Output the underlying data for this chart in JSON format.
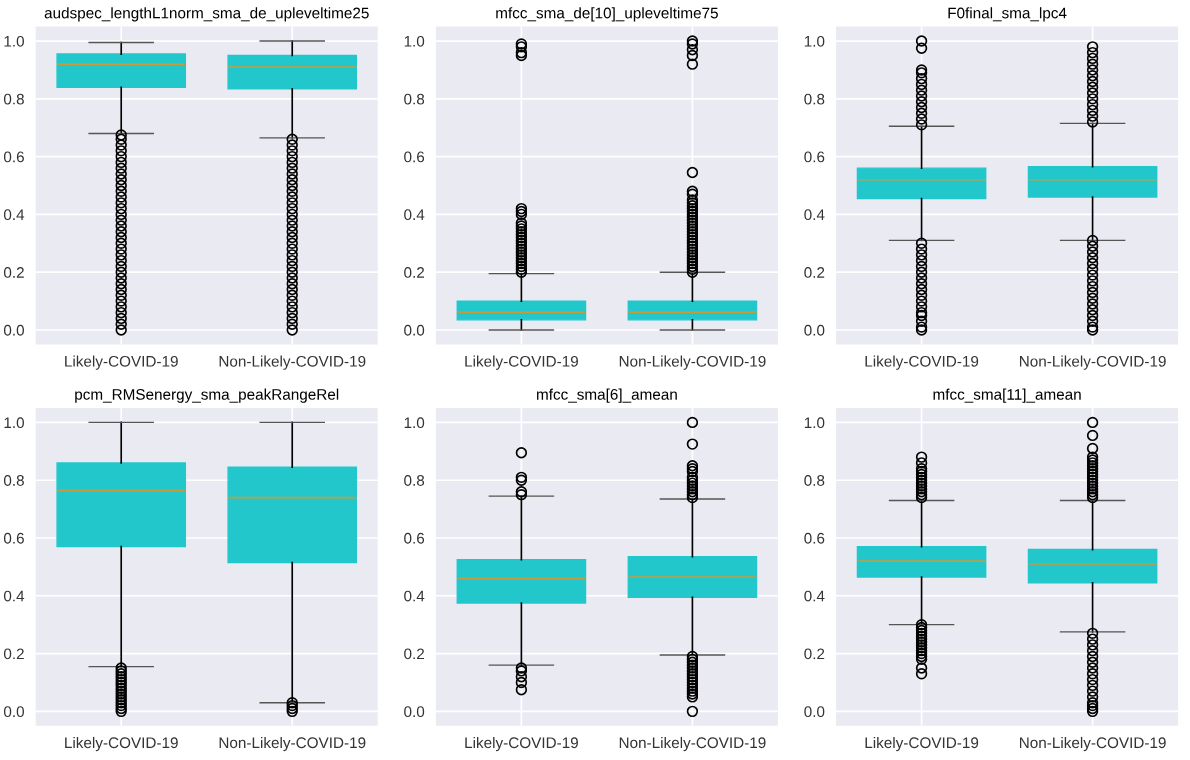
{
  "chart_data": [
    {
      "type": "box",
      "title": "audspec_lengthL1norm_sma_de_upleveltime25",
      "categories": [
        "Likely-COVID-19",
        "Non-Likely-COVID-19"
      ],
      "ylim": [
        -0.05,
        1.05
      ],
      "yticks": [
        {
          "value": 0,
          "label": "0.0"
        },
        {
          "value": 0.2,
          "label": "0.2"
        },
        {
          "value": 0.4,
          "label": "0.4"
        },
        {
          "value": 0.6,
          "label": "0.6"
        },
        {
          "value": 0.8,
          "label": "0.8"
        },
        {
          "value": 1,
          "label": "1.0"
        }
      ],
      "grid": true,
      "series": [
        {
          "color": "#22c7cc",
          "boxes": [
            {
              "low": 0.68,
              "q1": 0.84,
              "median": 0.92,
              "q3": 0.955,
              "high": 0.995,
              "outliers": [
                0.0,
                0.02,
                0.04,
                0.06,
                0.08,
                0.1,
                0.12,
                0.14,
                0.16,
                0.18,
                0.2,
                0.22,
                0.24,
                0.26,
                0.28,
                0.3,
                0.32,
                0.34,
                0.36,
                0.38,
                0.4,
                0.42,
                0.44,
                0.46,
                0.48,
                0.5,
                0.52,
                0.54,
                0.56,
                0.58,
                0.6,
                0.62,
                0.64,
                0.66,
                0.675
              ]
            },
            {
              "low": 0.665,
              "q1": 0.835,
              "median": 0.91,
              "q3": 0.95,
              "high": 1.0,
              "outliers": [
                0.0,
                0.02,
                0.04,
                0.06,
                0.08,
                0.1,
                0.12,
                0.14,
                0.16,
                0.18,
                0.2,
                0.22,
                0.24,
                0.26,
                0.28,
                0.3,
                0.32,
                0.34,
                0.36,
                0.38,
                0.4,
                0.42,
                0.44,
                0.46,
                0.48,
                0.5,
                0.52,
                0.54,
                0.56,
                0.58,
                0.6,
                0.62,
                0.64,
                0.66
              ]
            }
          ]
        }
      ]
    },
    {
      "type": "box",
      "title": "mfcc_sma_de[10]_upleveltime75",
      "categories": [
        "Likely-COVID-19",
        "Non-Likely-COVID-19"
      ],
      "ylim": [
        -0.05,
        1.05
      ],
      "yticks": [
        {
          "value": 0,
          "label": "0.0"
        },
        {
          "value": 0.2,
          "label": "0.2"
        },
        {
          "value": 0.4,
          "label": "0.4"
        },
        {
          "value": 0.6,
          "label": "0.6"
        },
        {
          "value": 0.8,
          "label": "0.8"
        },
        {
          "value": 1,
          "label": "1.0"
        }
      ],
      "grid": true,
      "series": [
        {
          "color": "#22c7cc",
          "boxes": [
            {
              "low": 0.0,
              "q1": 0.035,
              "median": 0.062,
              "q3": 0.1,
              "high": 0.195,
              "outliers": [
                0.2,
                0.21,
                0.22,
                0.23,
                0.24,
                0.25,
                0.26,
                0.27,
                0.28,
                0.29,
                0.3,
                0.31,
                0.32,
                0.33,
                0.34,
                0.35,
                0.36,
                0.37,
                0.4,
                0.41,
                0.42,
                0.95,
                0.96,
                0.98,
                0.99
              ]
            },
            {
              "low": 0.0,
              "q1": 0.035,
              "median": 0.062,
              "q3": 0.1,
              "high": 0.2,
              "outliers": [
                0.2,
                0.21,
                0.22,
                0.23,
                0.24,
                0.25,
                0.26,
                0.27,
                0.28,
                0.29,
                0.3,
                0.31,
                0.32,
                0.33,
                0.34,
                0.35,
                0.36,
                0.37,
                0.38,
                0.39,
                0.4,
                0.41,
                0.42,
                0.43,
                0.44,
                0.45,
                0.47,
                0.48,
                0.545,
                0.92,
                0.95,
                0.97,
                0.99,
                1.0
              ]
            }
          ]
        }
      ]
    },
    {
      "type": "box",
      "title": "F0final_sma_lpc4",
      "categories": [
        "Likely-COVID-19",
        "Non-Likely-COVID-19"
      ],
      "ylim": [
        -0.05,
        1.05
      ],
      "yticks": [
        {
          "value": 0,
          "label": "0.0"
        },
        {
          "value": 0.2,
          "label": "0.2"
        },
        {
          "value": 0.4,
          "label": "0.4"
        },
        {
          "value": 0.6,
          "label": "0.6"
        },
        {
          "value": 0.8,
          "label": "0.8"
        },
        {
          "value": 1,
          "label": "1.0"
        }
      ],
      "grid": true,
      "series": [
        {
          "color": "#22c7cc",
          "boxes": [
            {
              "low": 0.31,
              "q1": 0.455,
              "median": 0.52,
              "q3": 0.56,
              "high": 0.705,
              "outliers": [
                0.0,
                0.01,
                0.03,
                0.05,
                0.06,
                0.08,
                0.1,
                0.12,
                0.14,
                0.16,
                0.18,
                0.2,
                0.22,
                0.24,
                0.26,
                0.28,
                0.3,
                0.71,
                0.73,
                0.75,
                0.77,
                0.79,
                0.81,
                0.83,
                0.85,
                0.87,
                0.89,
                0.9,
                0.975,
                1.0
              ]
            },
            {
              "low": 0.31,
              "q1": 0.46,
              "median": 0.52,
              "q3": 0.565,
              "high": 0.715,
              "outliers": [
                0.0,
                0.01,
                0.03,
                0.05,
                0.07,
                0.09,
                0.11,
                0.13,
                0.15,
                0.17,
                0.19,
                0.21,
                0.23,
                0.25,
                0.27,
                0.29,
                0.31,
                0.72,
                0.74,
                0.76,
                0.78,
                0.8,
                0.82,
                0.84,
                0.86,
                0.88,
                0.9,
                0.92,
                0.94,
                0.96,
                0.98
              ]
            }
          ]
        }
      ]
    },
    {
      "type": "box",
      "title": "pcm_RMSenergy_sma_peakRangeRel",
      "categories": [
        "Likely-COVID-19",
        "Non-Likely-COVID-19"
      ],
      "ylim": [
        -0.05,
        1.05
      ],
      "yticks": [
        {
          "value": 0,
          "label": "0.0"
        },
        {
          "value": 0.2,
          "label": "0.2"
        },
        {
          "value": 0.4,
          "label": "0.4"
        },
        {
          "value": 0.6,
          "label": "0.6"
        },
        {
          "value": 0.8,
          "label": "0.8"
        },
        {
          "value": 1,
          "label": "1.0"
        }
      ],
      "grid": true,
      "series": [
        {
          "color": "#22c7cc",
          "boxes": [
            {
              "low": 0.155,
              "q1": 0.57,
              "median": 0.765,
              "q3": 0.86,
              "high": 1.0,
              "outliers": [
                0.0,
                0.01,
                0.02,
                0.03,
                0.04,
                0.05,
                0.06,
                0.07,
                0.08,
                0.09,
                0.1,
                0.11,
                0.12,
                0.13,
                0.14,
                0.15
              ]
            },
            {
              "low": 0.03,
              "q1": 0.515,
              "median": 0.74,
              "q3": 0.845,
              "high": 1.0,
              "outliers": [
                0.0,
                0.01,
                0.02,
                0.03
              ]
            }
          ]
        }
      ]
    },
    {
      "type": "box",
      "title": "mfcc_sma[6]_amean",
      "categories": [
        "Likely-COVID-19",
        "Non-Likely-COVID-19"
      ],
      "ylim": [
        -0.05,
        1.05
      ],
      "yticks": [
        {
          "value": 0,
          "label": "0.0"
        },
        {
          "value": 0.2,
          "label": "0.2"
        },
        {
          "value": 0.4,
          "label": "0.4"
        },
        {
          "value": 0.6,
          "label": "0.6"
        },
        {
          "value": 0.8,
          "label": "0.8"
        },
        {
          "value": 1,
          "label": "1.0"
        }
      ],
      "grid": true,
      "series": [
        {
          "color": "#22c7cc",
          "boxes": [
            {
              "low": 0.16,
              "q1": 0.375,
              "median": 0.46,
              "q3": 0.525,
              "high": 0.745,
              "outliers": [
                0.075,
                0.1,
                0.12,
                0.14,
                0.15,
                0.75,
                0.76,
                0.8,
                0.81,
                0.895
              ]
            },
            {
              "low": 0.195,
              "q1": 0.395,
              "median": 0.465,
              "q3": 0.535,
              "high": 0.735,
              "outliers": [
                0.0,
                0.05,
                0.06,
                0.07,
                0.08,
                0.09,
                0.1,
                0.11,
                0.12,
                0.13,
                0.14,
                0.15,
                0.16,
                0.17,
                0.18,
                0.19,
                0.74,
                0.75,
                0.76,
                0.77,
                0.78,
                0.79,
                0.8,
                0.81,
                0.83,
                0.84,
                0.85,
                0.925,
                1.0
              ]
            }
          ]
        }
      ]
    },
    {
      "type": "box",
      "title": "mfcc_sma[11]_amean",
      "categories": [
        "Likely-COVID-19",
        "Non-Likely-COVID-19"
      ],
      "ylim": [
        -0.05,
        1.05
      ],
      "yticks": [
        {
          "value": 0,
          "label": "0.0"
        },
        {
          "value": 0.2,
          "label": "0.2"
        },
        {
          "value": 0.4,
          "label": "0.4"
        },
        {
          "value": 0.6,
          "label": "0.6"
        },
        {
          "value": 0.8,
          "label": "0.8"
        },
        {
          "value": 1,
          "label": "1.0"
        }
      ],
      "grid": true,
      "series": [
        {
          "color": "#22c7cc",
          "boxes": [
            {
              "low": 0.3,
              "q1": 0.465,
              "median": 0.52,
              "q3": 0.57,
              "high": 0.73,
              "outliers": [
                0.13,
                0.15,
                0.18,
                0.19,
                0.2,
                0.21,
                0.22,
                0.23,
                0.24,
                0.25,
                0.26,
                0.27,
                0.28,
                0.29,
                0.3,
                0.74,
                0.75,
                0.76,
                0.77,
                0.78,
                0.79,
                0.8,
                0.81,
                0.82,
                0.83,
                0.84,
                0.86,
                0.88
              ]
            },
            {
              "low": 0.275,
              "q1": 0.445,
              "median": 0.51,
              "q3": 0.56,
              "high": 0.73,
              "outliers": [
                0.0,
                0.01,
                0.02,
                0.03,
                0.05,
                0.07,
                0.09,
                0.11,
                0.13,
                0.15,
                0.17,
                0.19,
                0.21,
                0.23,
                0.25,
                0.27,
                0.74,
                0.75,
                0.76,
                0.77,
                0.78,
                0.79,
                0.8,
                0.81,
                0.82,
                0.83,
                0.84,
                0.85,
                0.86,
                0.87,
                0.88,
                0.91,
                0.955,
                1.0
              ]
            }
          ]
        }
      ]
    }
  ]
}
